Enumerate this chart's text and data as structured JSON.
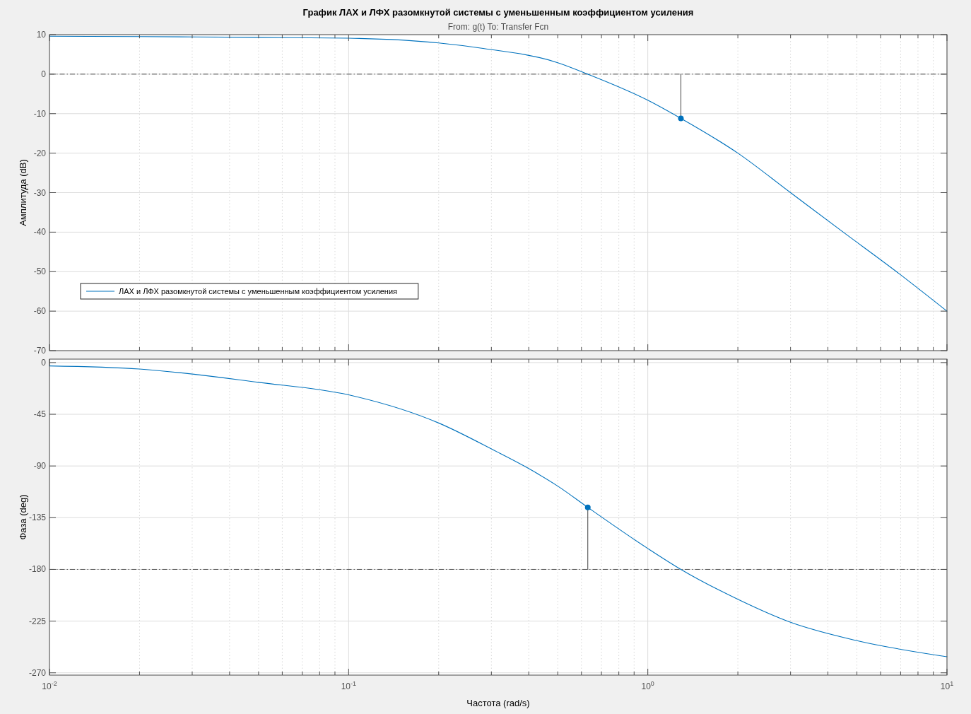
{
  "chart_data": [
    {
      "type": "line",
      "title": "График ЛАХ и ЛФХ разомкнутой системы с уменьшенным коэффициентом усиления",
      "subtitle": "From: g(t)  To: Transfer Fcn",
      "ylabel": "Амплитуда (dB)",
      "log": "x",
      "grid": true,
      "legend": "bottom left",
      "tick_labels": "y",
      "xlim": [
        0.01,
        10
      ],
      "xticks": [
        0.01,
        {
          "value": 0.02,
          "label": null
        },
        {
          "value": 0.03,
          "label": null
        },
        {
          "value": 0.04,
          "label": null
        },
        {
          "value": 0.05,
          "label": null
        },
        {
          "value": 0.06,
          "label": null
        },
        {
          "value": 0.07,
          "label": null
        },
        {
          "value": 0.08,
          "label": null
        },
        {
          "value": 0.09,
          "label": null
        },
        0.1,
        {
          "value": 0.2,
          "label": null
        },
        {
          "value": 0.3,
          "label": null
        },
        {
          "value": 0.4,
          "label": null
        },
        {
          "value": 0.5,
          "label": null
        },
        {
          "value": 0.6,
          "label": null
        },
        {
          "value": 0.7,
          "label": null
        },
        {
          "value": 0.8,
          "label": null
        },
        {
          "value": 0.9,
          "label": null
        },
        1,
        {
          "value": 2,
          "label": null
        },
        {
          "value": 3,
          "label": null
        },
        {
          "value": 4,
          "label": null
        },
        {
          "value": 5,
          "label": null
        },
        {
          "value": 6,
          "label": null
        },
        {
          "value": 7,
          "label": null
        },
        {
          "value": 8,
          "label": null
        },
        {
          "value": 9,
          "label": null
        },
        10
      ],
      "ylim": [
        -70,
        10
      ],
      "yticks": [
        10,
        0,
        -10,
        -20,
        -30,
        -40,
        -50,
        -60,
        -70
      ],
      "ref_lines": [
        {
          "axis": "y",
          "value": 0,
          "color": "#555555",
          "line_style": "dashed"
        }
      ],
      "series": [
        {
          "name": "ЛАХ и ЛФХ разомкнутой системы с уменьшенным коэффициентом усиления",
          "color": "#0072bd",
          "x": [
            0.01,
            0.02,
            0.05,
            0.1,
            0.2,
            0.276,
            0.5,
            0.63,
            1,
            1.29,
            2,
            3,
            4.5,
            6.78,
            10
          ],
          "values": [
            9.6,
            9.5,
            9.3,
            9.1,
            7.9,
            6.6,
            2.9,
            0,
            -6.6,
            -11.2,
            -20,
            -30,
            -40,
            -50,
            -60
          ]
        },
        {
          "type": "line",
          "color": "#555555",
          "x": [
            1.29,
            1.29
          ],
          "values": [
            0,
            -11.2
          ]
        },
        {
          "type": "scatter",
          "color": "#0072bd",
          "marker": "circle",
          "x": [
            1.29
          ],
          "values": [
            -11.2
          ]
        }
      ]
    },
    {
      "type": "line",
      "xlabel": "Частота  (rad/s)",
      "ylabel": "Фаза (deg)",
      "log": "x",
      "grid": true,
      "xlim": [
        0.01,
        10
      ],
      "xticks": [
        {
          "value": 0.01,
          "label": "10$^{-2}$"
        },
        {
          "value": 0.02,
          "label": null
        },
        {
          "value": 0.03,
          "label": null
        },
        {
          "value": 0.04,
          "label": null
        },
        {
          "value": 0.05,
          "label": null
        },
        {
          "value": 0.06,
          "label": null
        },
        {
          "value": 0.07,
          "label": null
        },
        {
          "value": 0.08,
          "label": null
        },
        {
          "value": 0.09,
          "label": null
        },
        {
          "value": 0.1,
          "label": "10$^{-1}$"
        },
        {
          "value": 0.2,
          "label": null
        },
        {
          "value": 0.3,
          "label": null
        },
        {
          "value": 0.4,
          "label": null
        },
        {
          "value": 0.5,
          "label": null
        },
        {
          "value": 0.6,
          "label": null
        },
        {
          "value": 0.7,
          "label": null
        },
        {
          "value": 0.8,
          "label": null
        },
        {
          "value": 0.9,
          "label": null
        },
        {
          "value": 1,
          "label": "10$^{0}$"
        },
        {
          "value": 2,
          "label": null
        },
        {
          "value": 3,
          "label": null
        },
        {
          "value": 4,
          "label": null
        },
        {
          "value": 5,
          "label": null
        },
        {
          "value": 6,
          "label": null
        },
        {
          "value": 7,
          "label": null
        },
        {
          "value": 8,
          "label": null
        },
        {
          "value": 9,
          "label": null
        },
        {
          "value": 10,
          "label": "10$^{1}$"
        }
      ],
      "ylim": [
        -272,
        3
      ],
      "yticks": [
        0,
        -45,
        -90,
        -135,
        -180,
        -225,
        -270
      ],
      "ref_lines": [
        {
          "axis": "y",
          "value": -180,
          "color": "#555555",
          "line_style": "dashed"
        }
      ],
      "series": [
        {
          "color": "#0072bd",
          "x": [
            0.01,
            0.02,
            0.05,
            0.1,
            0.2,
            0.308,
            0.397,
            0.5,
            0.63,
            1,
            1.29,
            2,
            3,
            5,
            10
          ],
          "values": [
            -2.9,
            -5.6,
            -17.2,
            -28.1,
            -52.6,
            -76.7,
            -91.8,
            -107.5,
            -126,
            -161.8,
            -180,
            -206,
            -226,
            -242,
            -256
          ]
        },
        {
          "type": "line",
          "color": "#555555",
          "x": [
            0.63,
            0.63
          ],
          "values": [
            -126,
            -180
          ]
        },
        {
          "type": "scatter",
          "color": "#0072bd",
          "marker": "circle",
          "x": [
            0.63
          ],
          "values": [
            -126
          ]
        }
      ]
    }
  ]
}
